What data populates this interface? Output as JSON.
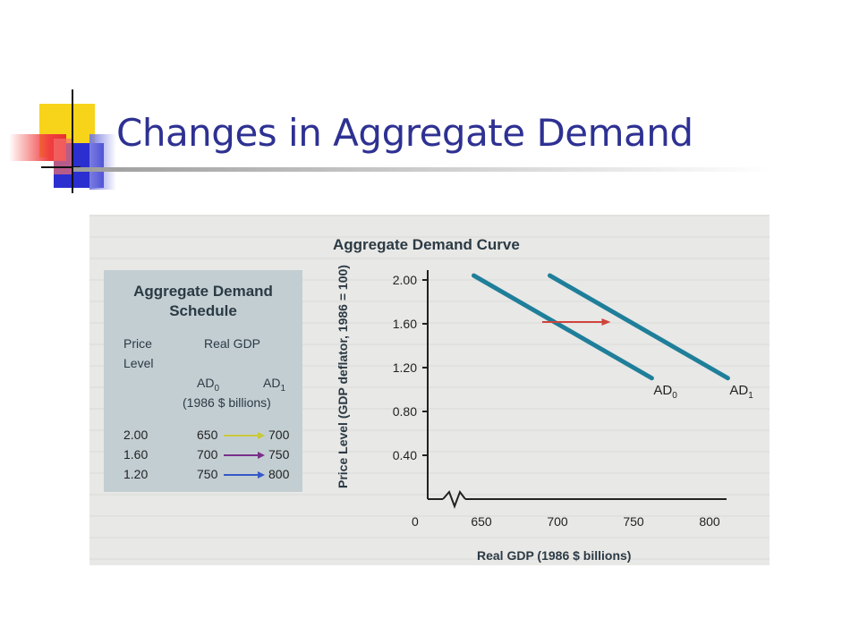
{
  "slide": {
    "title": "Changes in Aggregate Demand"
  },
  "schedule": {
    "title_line1": "Aggregate Demand",
    "title_line2": "Schedule",
    "price_header_1": "Price",
    "price_header_2": "Level",
    "gdp_header": "Real GDP",
    "ad0_header": "AD",
    "ad0_sub": "0",
    "ad1_header": "AD",
    "ad1_sub": "1",
    "units": "(1986 $ billions)",
    "rows": [
      {
        "price": "2.00",
        "ad0": "650",
        "ad1": "700",
        "arrow_color": "#c9c93a"
      },
      {
        "price": "1.60",
        "ad0": "700",
        "ad1": "750",
        "arrow_color": "#7a2f8a"
      },
      {
        "price": "1.20",
        "ad0": "750",
        "ad1": "800",
        "arrow_color": "#3558c8"
      }
    ]
  },
  "chart_data": {
    "type": "line",
    "title": "Aggregate Demand Curve",
    "xlabel": "Real GDP (1986 $ billions)",
    "ylabel": "Price Level (GDP deflator, 1986 = 100)",
    "x_ticks": [
      "0",
      "650",
      "700",
      "750",
      "800"
    ],
    "y_ticks": [
      "0.40",
      "0.80",
      "1.20",
      "1.60",
      "2.00"
    ],
    "xlim": [
      640,
      800
    ],
    "ylim": [
      0,
      2.1
    ],
    "axis_break": true,
    "grid": false,
    "series": [
      {
        "name": "AD",
        "sub": "0",
        "x": [
          650,
          700,
          750
        ],
        "y": [
          2.0,
          1.6,
          1.2
        ],
        "color": "#1f7f9a"
      },
      {
        "name": "AD",
        "sub": "1",
        "x": [
          700,
          750,
          800
        ],
        "y": [
          2.0,
          1.6,
          1.2
        ],
        "color": "#1f7f9a"
      }
    ],
    "shift_arrow": {
      "from_x": 690,
      "to_x": 735,
      "y": 1.6,
      "color": "#d0443a"
    }
  }
}
